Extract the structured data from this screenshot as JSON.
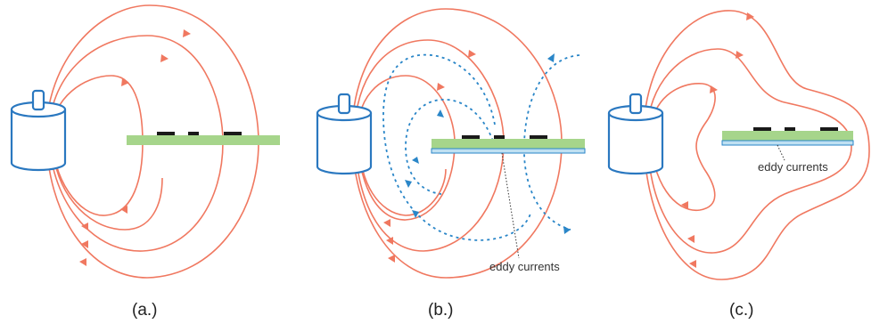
{
  "panels": [
    {
      "label": "(a.)",
      "annotation": ""
    },
    {
      "label": "(b.)",
      "annotation": "eddy currents"
    },
    {
      "label": "(c.)",
      "annotation": "eddy currents"
    }
  ],
  "colors": {
    "field_lines": "#f07860",
    "eddy_field": "#2a86c8",
    "coil": "#2a78c0",
    "board": "#a6d58b",
    "shield": "#bfe0f2",
    "components": "#1a1a1a"
  },
  "icons": [
    "coil-icon",
    "circuit-board-icon"
  ]
}
